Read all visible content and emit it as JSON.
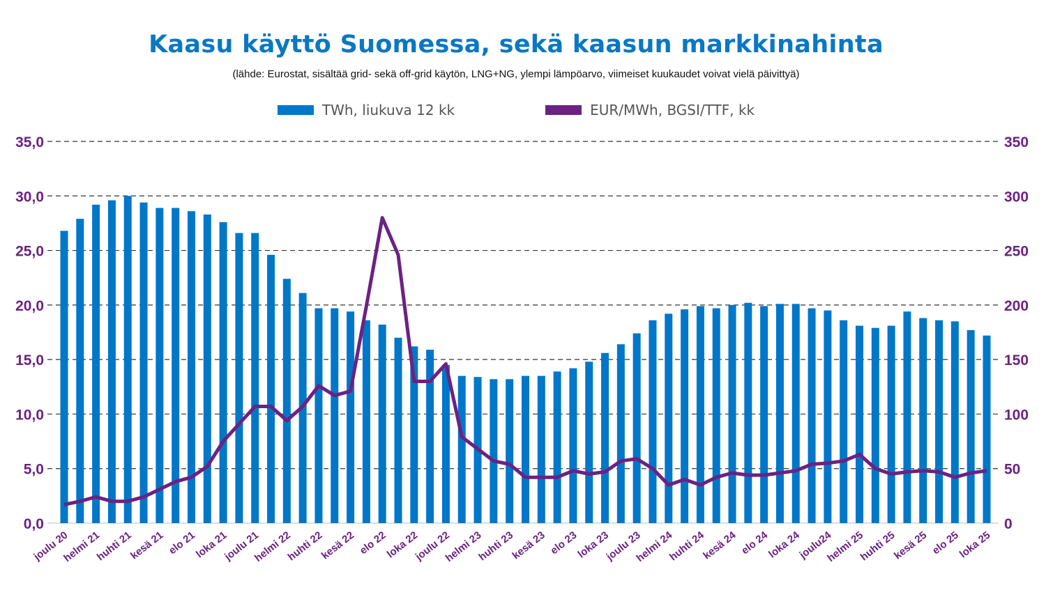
{
  "title": "Kaasu käyttö Suomessa, sekä kaasun markkinahinta",
  "subtitle": "(lähde: Eurostat, sisältää grid- sekä off-grid käytön, LNG+NG, ylempi lämpöarvo, viimeiset kuukaudet voivat vielä päivittyä)",
  "colors": {
    "bars": "#0077c8",
    "line": "#6b2282",
    "title": "#0a78c2",
    "axis": "#6b2282"
  },
  "chart_data": {
    "type": "bar+line",
    "title": "Kaasu käyttö Suomessa, sekä kaasun markkinahinta",
    "legend": [
      "TWh, liukuva 12 kk",
      "EUR/MWh, BGSI/TTF, kk"
    ],
    "legend_placement": "top",
    "x_tick_labels": [
      "joulu 20",
      "helmi 21",
      "huhti 21",
      "kesä 21",
      "elo 21",
      "loka 21",
      "joulu 21",
      "helmi 22",
      "huhti 22",
      "kesä 22",
      "elo 22",
      "loka 22",
      "joulu 22",
      "helmi 23",
      "huhti 23",
      "kesä 23",
      "elo 23",
      "loka 23",
      "joulu 23",
      "helmi 24",
      "huhti 24",
      "kesä 24",
      "elo 24",
      "loka 24",
      "joulu24",
      "helmi 25",
      "huhti 25",
      "kesä 25",
      "elo 25",
      "loka 25"
    ],
    "left_axis": {
      "ylim": [
        0,
        35
      ],
      "ticks": [
        "0,0",
        "5,0",
        "10,0",
        "15,0",
        "20,0",
        "25,0",
        "30,0",
        "35,0"
      ]
    },
    "right_axis": {
      "ylim": [
        0,
        350
      ],
      "ticks": [
        "0",
        "50",
        "100",
        "150",
        "200",
        "250",
        "300",
        "350"
      ]
    },
    "grid": true,
    "series": [
      {
        "name": "TWh, liukuva 12 kk",
        "type": "bar",
        "axis": "left",
        "values": [
          26.8,
          27.9,
          29.2,
          29.6,
          30.0,
          29.4,
          28.9,
          28.9,
          28.6,
          28.3,
          27.6,
          26.6,
          26.6,
          24.6,
          22.4,
          21.1,
          19.7,
          19.7,
          19.4,
          18.6,
          18.2,
          17.0,
          16.2,
          15.9,
          14.5,
          13.5,
          13.4,
          13.2,
          13.2,
          13.5,
          13.5,
          13.9,
          14.2,
          14.8,
          15.6,
          16.4,
          17.4,
          18.6,
          19.2,
          19.6,
          19.9,
          19.7,
          20.0,
          20.2,
          19.9,
          20.1,
          20.1,
          19.7,
          19.5,
          18.6,
          18.1,
          17.9,
          18.1,
          19.4,
          18.8,
          18.6,
          18.5,
          17.7,
          17.2
        ]
      },
      {
        "name": "EUR/MWh, BGSI/TTF, kk",
        "type": "line",
        "axis": "right",
        "values": [
          17,
          20,
          24,
          20,
          20,
          24,
          31,
          38,
          42,
          52,
          75,
          91,
          107,
          107,
          94,
          107,
          126,
          117,
          121,
          199,
          280,
          246,
          130,
          130,
          146,
          79,
          68,
          57,
          54,
          42,
          42,
          42,
          48,
          45,
          47,
          57,
          59,
          50,
          35,
          40,
          35,
          42,
          46,
          44,
          44,
          46,
          48,
          54,
          55,
          57,
          63,
          50,
          45,
          47,
          48,
          47,
          42,
          46,
          48
        ]
      }
    ]
  }
}
